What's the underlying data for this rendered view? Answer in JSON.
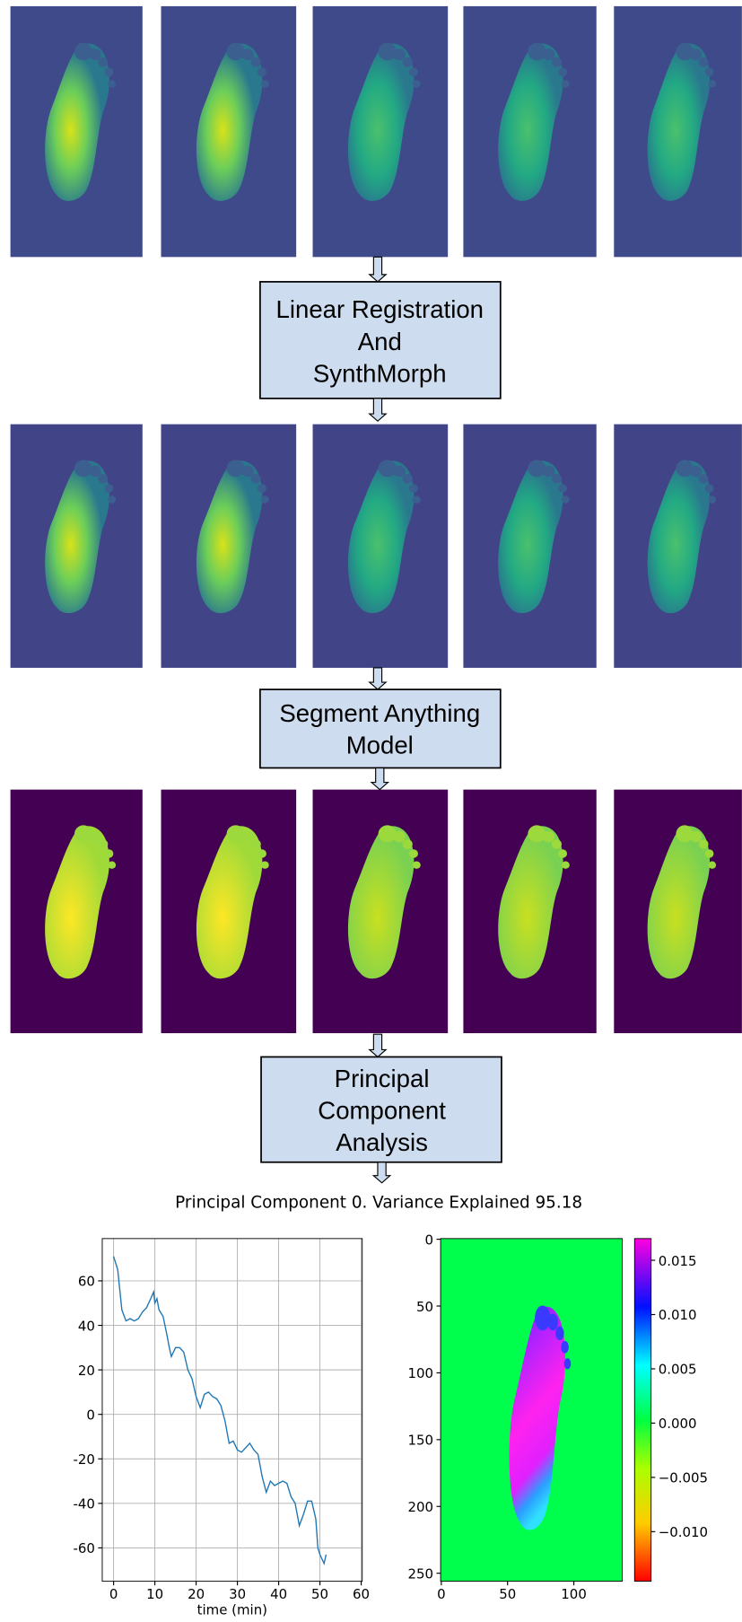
{
  "steps": [
    {
      "lines": [
        "Linear Registration",
        "And",
        "SynthMorph"
      ]
    },
    {
      "lines": [
        "Segment Anything",
        "Model"
      ]
    },
    {
      "lines": [
        "Principal",
        "Component",
        "Analysis"
      ]
    }
  ],
  "figure_title": "Principal Component 0. Variance Explained 95.18",
  "chart_data": [
    {
      "type": "line",
      "xlabel": "time (min)",
      "xlim": [
        -2.75,
        60.25
      ],
      "ylim": [
        -75,
        79
      ],
      "xticks": [
        0,
        10,
        20,
        30,
        40,
        50,
        60
      ],
      "yticks": [
        -60,
        -40,
        -20,
        0,
        20,
        40,
        60
      ],
      "grid": true,
      "x": [
        0,
        1,
        2,
        3,
        4,
        5,
        6,
        7,
        8,
        9,
        9.7,
        10,
        10.5,
        11,
        12,
        13,
        13.5,
        14,
        15,
        16,
        17,
        18,
        19,
        20,
        21,
        22,
        23,
        24,
        25,
        26,
        27,
        28,
        29,
        30,
        31,
        32,
        33,
        34,
        35,
        36,
        37,
        38,
        39,
        40,
        41,
        42,
        43,
        44,
        45,
        46,
        47,
        48,
        49,
        49.5,
        50,
        51,
        51.5
      ],
      "series": [
        {
          "color": "#1f77b4",
          "values": [
            71,
            65,
            47,
            42,
            43,
            42,
            43,
            46,
            48,
            52,
            55,
            50,
            52,
            47,
            44,
            35,
            30,
            26,
            30,
            30,
            28,
            20,
            16,
            8,
            3,
            9,
            10,
            8,
            7,
            4,
            -3,
            -13,
            -12,
            -16,
            -17,
            -15,
            -13,
            -16,
            -18,
            -28,
            -35,
            -30,
            -32,
            -31,
            -30,
            -31,
            -37,
            -40,
            -50,
            -45,
            -39,
            -39,
            -47,
            -60,
            -63,
            -67,
            -63
          ]
        }
      ]
    },
    {
      "type": "heatmap",
      "xlim": [
        -0.5,
        136.5
      ],
      "ylim": [
        256,
        -0.5
      ],
      "xticks": [
        0,
        50,
        100
      ],
      "yticks": [
        0,
        50,
        100,
        150,
        200,
        250
      ],
      "colorbar": {
        "lim": [
          -0.01457,
          0.017
        ],
        "ticks": [
          {
            "value": 0.015,
            "label": "0.015"
          },
          {
            "value": 0.01,
            "label": "0.010"
          },
          {
            "value": 0.005,
            "label": "0.005"
          },
          {
            "value": 0,
            "label": "0.000"
          },
          {
            "value": -0.005,
            "label": "−0.005"
          },
          {
            "value": -0.01,
            "label": "−0.010"
          }
        ]
      }
    }
  ]
}
